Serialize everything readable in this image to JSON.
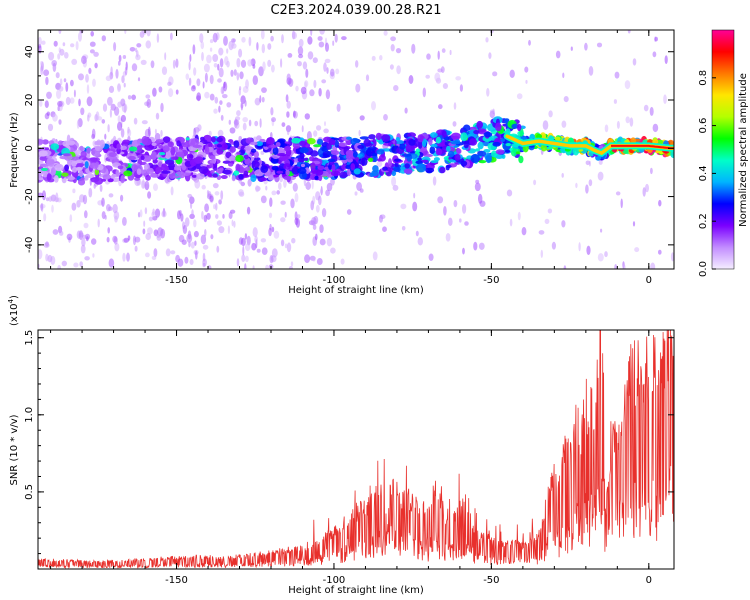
{
  "title": "C2E3.2024.039.00.28.R21",
  "chart_data": [
    {
      "type": "heatmap",
      "xlabel": "Height of straight line (km)",
      "ylabel": "Frequency (Hz)",
      "xlim": [
        -194,
        8
      ],
      "ylim": [
        -50,
        49
      ],
      "xticks": [
        -150,
        -100,
        -50,
        0
      ],
      "xtick_labels": [
        "-150",
        "-100",
        "-50",
        "0"
      ],
      "yticks": [
        -40,
        -20,
        0,
        20,
        40
      ],
      "ytick_labels": [
        "-40",
        "-20",
        "0",
        "20",
        "40"
      ],
      "ridge": {
        "x": [
          -194,
          -180,
          -165,
          -150,
          -140,
          -120,
          -100,
          -85,
          -70,
          -60,
          -50,
          -45,
          -40,
          -35,
          -30,
          -25,
          -20,
          -17,
          -15,
          -12,
          -5,
          0,
          7
        ],
        "freq": [
          -5,
          -6,
          -5,
          -4,
          -4,
          -5,
          -4,
          -3,
          -2,
          0,
          3,
          5,
          2,
          3,
          2,
          1,
          1,
          -1,
          -2,
          1,
          1,
          1,
          0
        ],
        "amplitude": [
          0.15,
          0.15,
          0.18,
          0.2,
          0.22,
          0.25,
          0.3,
          0.35,
          0.35,
          0.38,
          0.4,
          0.45,
          0.55,
          0.62,
          0.72,
          0.8,
          0.85,
          0.5,
          0.3,
          0.95,
          1.0,
          1.0,
          0.95
        ]
      },
      "colorbar": {
        "label": "Normalized spectral amplitude",
        "range": [
          0.0,
          1.0
        ],
        "ticks": [
          0.0,
          0.2,
          0.4,
          0.6,
          0.8
        ],
        "tick_labels": [
          "0.0",
          "0.2",
          "0.4",
          "0.6",
          "0.8"
        ],
        "colors": [
          "#f5eeff",
          "#c28cff",
          "#7a00ff",
          "#0000ff",
          "#00b4ff",
          "#00ffc8",
          "#00ff00",
          "#b4ff00",
          "#ffe600",
          "#ff7800",
          "#ff0000",
          "#ff0096"
        ]
      }
    },
    {
      "type": "line",
      "xlabel": "Height of straight line (km)",
      "ylabel": "SNR (10 * v/v)",
      "scale_label": "(x10",
      "scale_exp": "4",
      "scale_close": ")",
      "xlim": [
        -194,
        8
      ],
      "ylim": [
        0,
        15500
      ],
      "xticks": [
        -150,
        -100,
        -50,
        0
      ],
      "xtick_labels": [
        "-150",
        "-100",
        "-50",
        "0"
      ],
      "yticks": [
        5000,
        10000,
        15000
      ],
      "ytick_labels": [
        "0.5",
        "1.0",
        "1.5"
      ],
      "series": [
        {
          "color": "#e8302c",
          "x": [
            -194,
            -185,
            -175,
            -165,
            -155,
            -145,
            -135,
            -125,
            -120,
            -115,
            -110,
            -105,
            -100,
            -95,
            -90,
            -85,
            -83,
            -80,
            -75,
            -70,
            -68,
            -65,
            -60,
            -58,
            -55,
            -50,
            -45,
            -40,
            -36,
            -34,
            -33,
            -30,
            -28,
            -27,
            -25,
            -23,
            -22,
            -20,
            -18,
            -16,
            -15.5,
            -15,
            -14.5,
            -14,
            -13,
            -12,
            -10,
            -8,
            -6,
            -4,
            -2,
            0,
            3,
            6,
            8
          ],
          "y": [
            400,
            350,
            300,
            350,
            450,
            500,
            500,
            600,
            700,
            800,
            900,
            1200,
            1600,
            2200,
            2600,
            3200,
            4400,
            2800,
            3000,
            2400,
            3500,
            2300,
            2500,
            3100,
            1500,
            1200,
            1100,
            1000,
            1200,
            1800,
            2500,
            4000,
            3500,
            5000,
            4600,
            6200,
            5500,
            7000,
            6500,
            8500,
            14500,
            11000,
            9000,
            2500,
            3000,
            5500,
            6000,
            6500,
            8500,
            8200,
            8500,
            8800,
            8600,
            9000,
            9500
          ]
        }
      ]
    }
  ]
}
